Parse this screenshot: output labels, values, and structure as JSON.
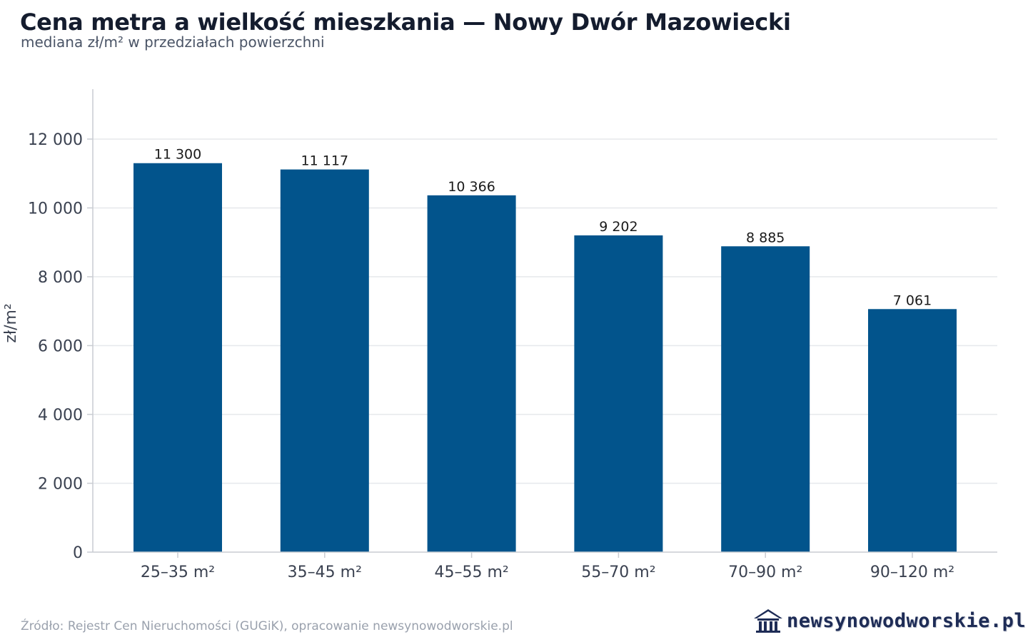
{
  "title": "Cena metra a wielkość mieszkania — Nowy Dwór Mazowiecki",
  "subtitle": "mediana zł/m² w przedziałach powierzchni",
  "source": "Źródło: Rejestr Cen Nieruchomości (GUGiK), opracowanie newsynowodworskie.pl",
  "brand": "newsynowodworskie.pl",
  "brand_icon": "house-icon",
  "colors": {
    "bar": "#02548c",
    "grid": "#e6e8ec",
    "axis": "#c9ccd2",
    "tick_text": "#3a4150",
    "label_text": "#1a1a1a"
  },
  "chart_data": {
    "type": "bar",
    "categories": [
      "25–35 m²",
      "35–45 m²",
      "45–55 m²",
      "55–70 m²",
      "70–90 m²",
      "90–120 m²"
    ],
    "values": [
      11300,
      11117,
      10366,
      9202,
      8885,
      7061
    ],
    "value_labels": [
      "11 300",
      "11 117",
      "10 366",
      "9 202",
      "8 885",
      "7 061"
    ],
    "title": "Cena metra a wielkość mieszkania — Nowy Dwór Mazowiecki",
    "subtitle": "mediana zł/m² w przedziałach powierzchni",
    "xlabel": "",
    "ylabel": "zł/m²",
    "ylim": [
      0,
      13450
    ],
    "yticks": [
      0,
      2000,
      4000,
      6000,
      8000,
      10000,
      12000
    ],
    "ytick_labels": [
      "0",
      "2 000",
      "4 000",
      "6 000",
      "8 000",
      "10 000",
      "12 000"
    ],
    "grid": true,
    "legend": "none"
  }
}
